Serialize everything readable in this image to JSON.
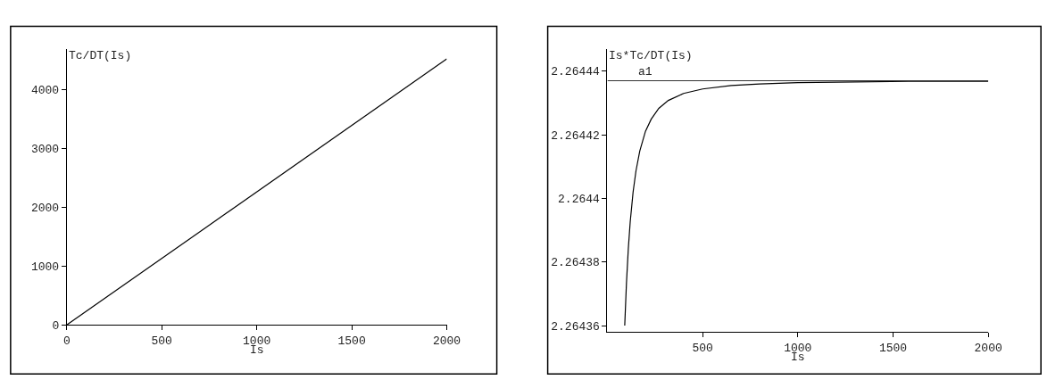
{
  "chart_data": [
    {
      "type": "line",
      "xlabel": "Is",
      "ylabel": "Tc/DT(Is)",
      "x": [
        0,
        2000
      ],
      "series": [
        {
          "color": "#000000",
          "values": [
            0,
            4530
          ]
        }
      ],
      "xlim": [
        0,
        2000
      ],
      "ylim": [
        0,
        4700
      ],
      "xticks": [
        0,
        500,
        1000,
        1500,
        2000
      ],
      "yticks": [
        0,
        1000,
        2000,
        3000,
        4000
      ]
    },
    {
      "type": "line",
      "xlabel": "Is",
      "ylabel": "Is*Tc/DT(Is)",
      "x": [
        91,
        100,
        110,
        120,
        135,
        150,
        170,
        200,
        230,
        270,
        320,
        400,
        500,
        650,
        800,
        1000,
        1300,
        1600,
        2000
      ],
      "series": [
        {
          "color": "#000000",
          "values": [
            2.26436,
            2.2643732,
            2.2643843,
            2.2643927,
            2.264402,
            2.2644086,
            2.2644149,
            2.2644211,
            2.2644249,
            2.2644283,
            2.2644308,
            2.264433,
            2.2644344,
            2.2644355,
            2.264436,
            2.2644364,
            2.2644366,
            2.2644368,
            2.2644368
          ]
        }
      ],
      "xlim": [
        0,
        2000
      ],
      "ylim": [
        2.264358,
        2.264447
      ],
      "xticks": [
        500,
        1000,
        1500,
        2000
      ],
      "yticks": [
        2.26436,
        2.26438,
        2.2644,
        2.26442,
        2.26444
      ],
      "ref_lines": [
        {
          "axis": "y",
          "value": 2.264437,
          "label": "a1",
          "color": "#333333"
        }
      ]
    }
  ]
}
